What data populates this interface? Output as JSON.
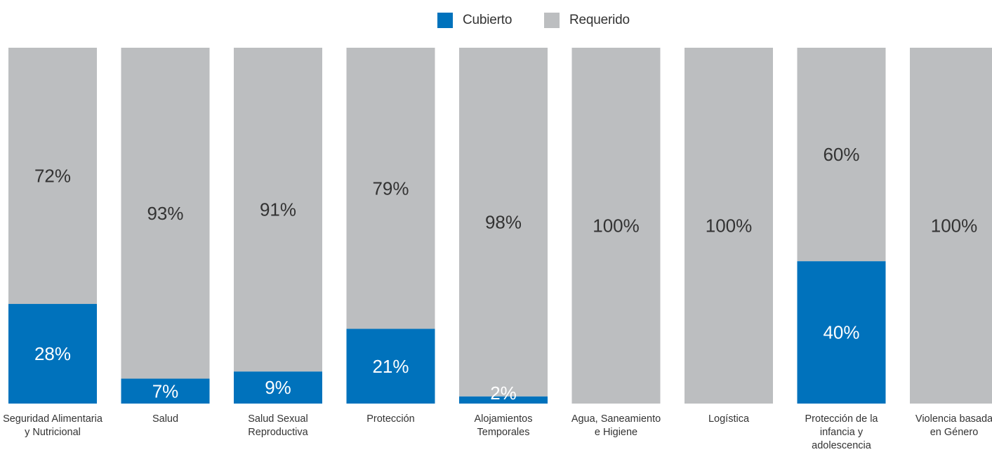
{
  "legend": {
    "covered_label": "Cubierto",
    "required_label": "Requerido"
  },
  "colors": {
    "covered": "#0072bc",
    "required": "#bcbec0",
    "covered_text": "#ffffff",
    "required_text": "#333333"
  },
  "chart_data": {
    "type": "bar",
    "stacked": true,
    "ylim": [
      0,
      100
    ],
    "categories": [
      [
        "Seguridad Alimentaria",
        "y Nutricional"
      ],
      [
        "Salud"
      ],
      [
        "Salud Sexual",
        "Reproductiva"
      ],
      [
        "Protección"
      ],
      [
        "Alojamientos",
        "Temporales"
      ],
      [
        "Agua, Saneamiento",
        "e Higiene"
      ],
      [
        "Logística"
      ],
      [
        "Protección de la",
        "infancia y",
        "adolescencia"
      ],
      [
        "Violencia basada",
        "en Género"
      ]
    ],
    "series": [
      {
        "name": "Cubierto",
        "values": [
          28,
          7,
          9,
          21,
          2,
          0,
          0,
          40,
          0
        ]
      },
      {
        "name": "Requerido",
        "values": [
          72,
          93,
          91,
          79,
          98,
          100,
          100,
          60,
          100
        ]
      }
    ]
  }
}
